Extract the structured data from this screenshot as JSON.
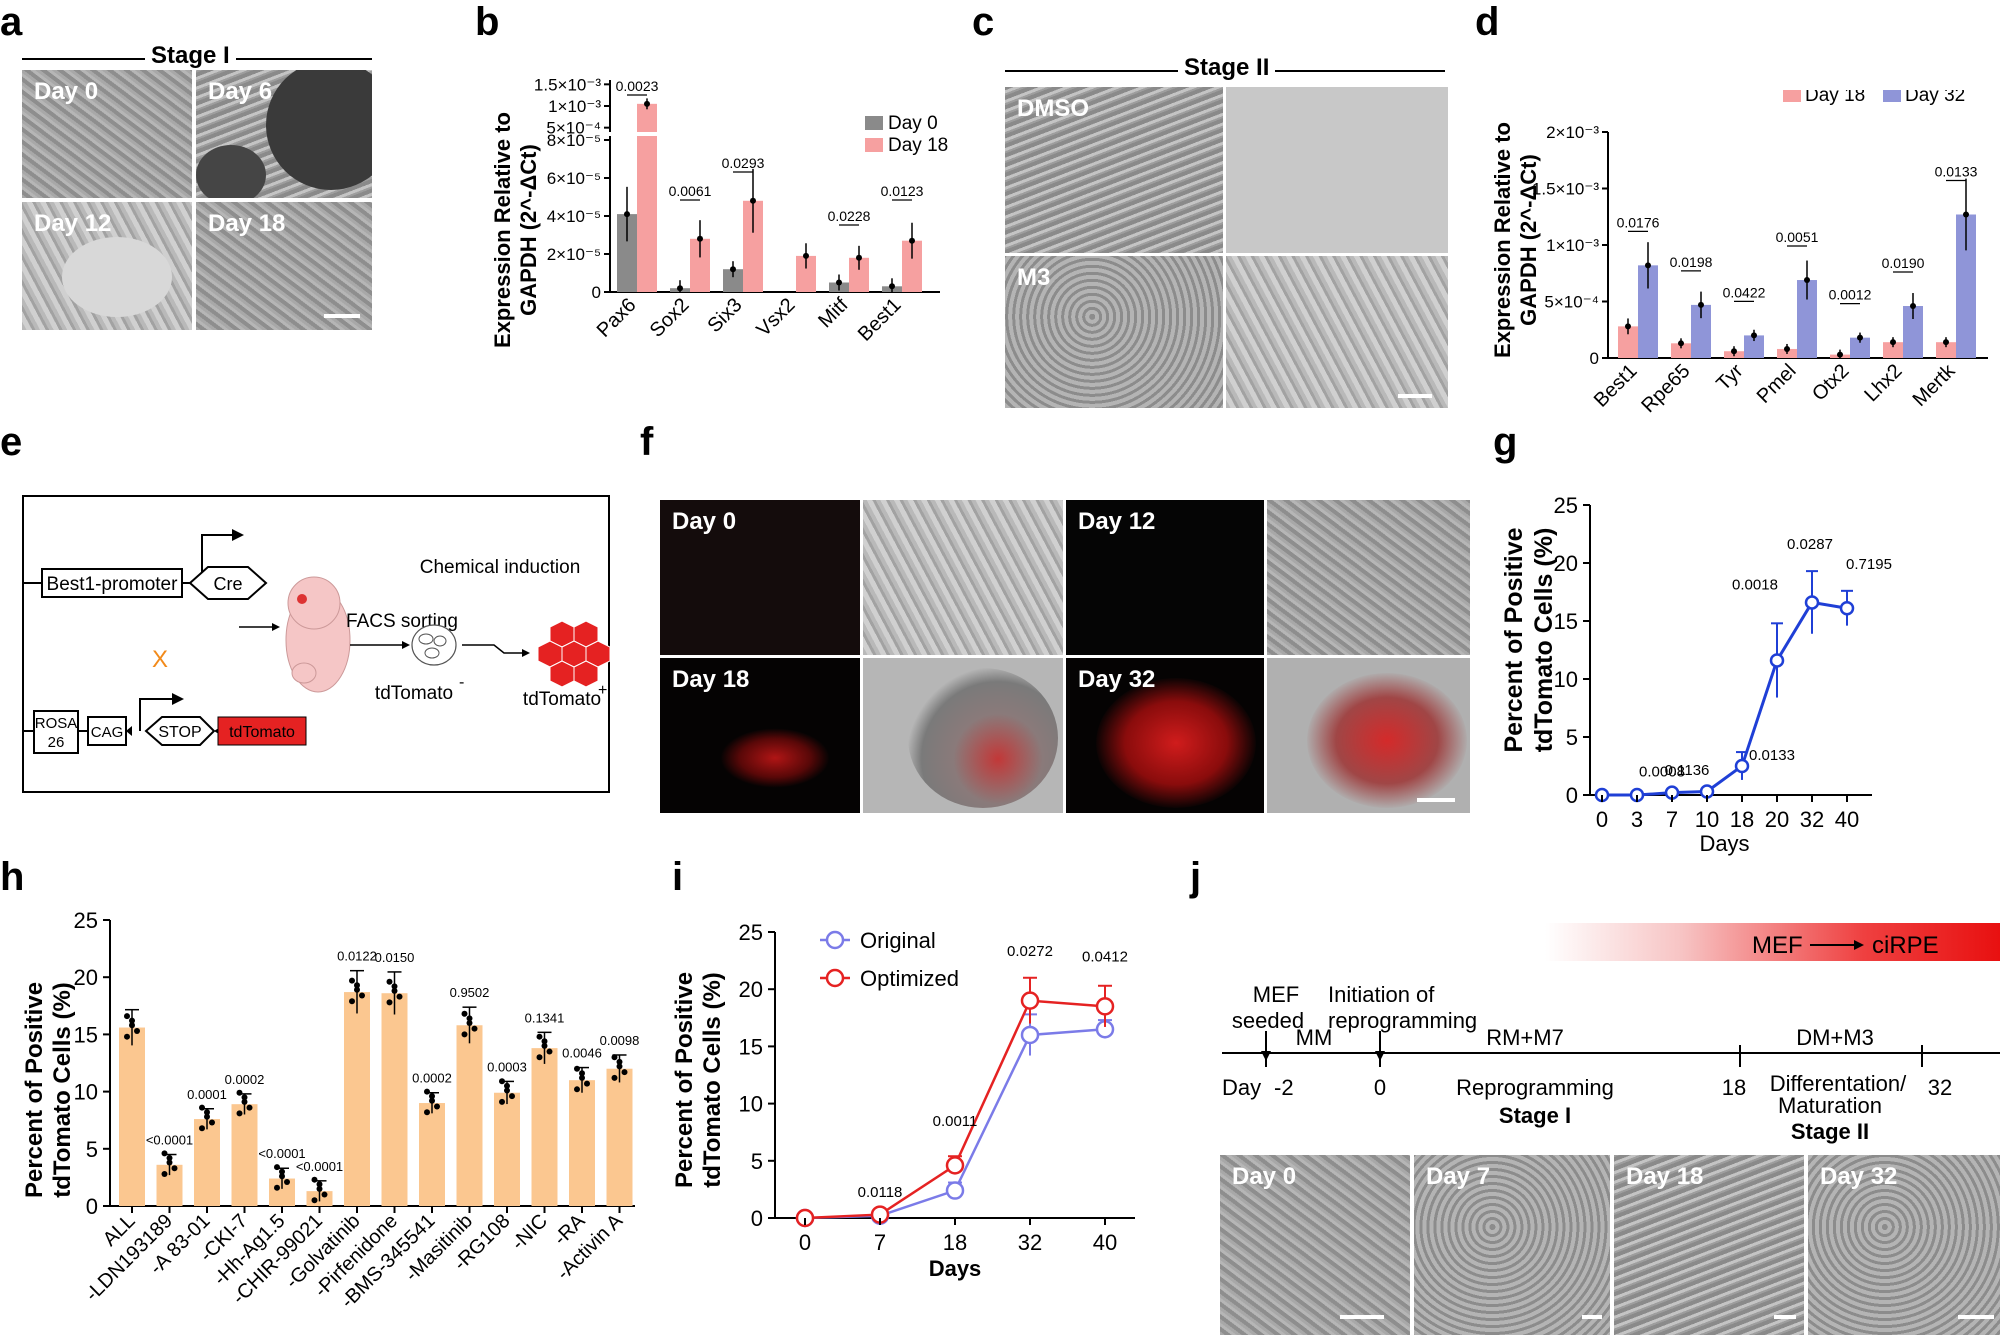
{
  "panels": {
    "a": {
      "letter": "a",
      "stage": "Stage I",
      "images": [
        "Day 0",
        "Day 6",
        "Day 12",
        "Day 18"
      ]
    },
    "c": {
      "letter": "c",
      "stage": "Stage II",
      "images": [
        "DMSO",
        "M3"
      ]
    },
    "e": {
      "letter": "e",
      "promoter": "Best1-promoter",
      "cre": "Cre",
      "cross": "X",
      "rosa": "ROSA\n26",
      "rosa1": "ROSA",
      "rosa2": "26",
      "cag": "CAG",
      "stop": "STOP",
      "tdtomato": "tdTomato",
      "facs": "FACS sorting",
      "chem": "Chemical induction",
      "neg": "tdTomato",
      "neg_sup": "-",
      "pos": "tdTomato",
      "pos_sup": "+"
    },
    "f": {
      "letter": "f",
      "images": [
        "Day 0",
        "Day 12",
        "Day 18",
        "Day 32"
      ]
    },
    "j": {
      "letter": "j",
      "gradient_label": "MEF",
      "gradient_target": "ciRPE",
      "mef_seeded_1": "MEF",
      "mef_seeded_2": "seeded",
      "init_1": "Initiation of",
      "init_2": "reprogramming",
      "mm": "MM",
      "rm": "RM+M7",
      "dm": "DM+M3",
      "day": "Day",
      "d_m2": "-2",
      "d0": "0",
      "d18": "18",
      "d32": "32",
      "reprogramming": "Reprogramming",
      "stage1": "Stage I",
      "diff_1": "Differentation/",
      "diff_2": "Maturation",
      "stage2": "Stage II",
      "images": [
        "Day 0",
        "Day 7",
        "Day 18",
        "Day 32"
      ]
    }
  },
  "colors": {
    "gray": "#8a8a8a",
    "pink": "#f6a0a0",
    "blue": "#8f95d8",
    "orange": "#fbc790",
    "line_blue": "#1f3fd6",
    "line_orig": "#7b7be8",
    "line_opt": "#e52222",
    "red": "#e52222"
  },
  "chart_data": [
    {
      "id": "b",
      "letter": "b",
      "type": "bar",
      "ylabel_1": "Expression Relative to",
      "ylabel_2": "GAPDH (2^-ΔCt)",
      "categories": [
        "Pax6",
        "Sox2",
        "Six3",
        "Vsx2",
        "Mitf",
        "Best1"
      ],
      "series": [
        {
          "name": "Day 0",
          "values": [
            4.1e-05,
            2e-06,
            1.2e-05,
            0,
            5e-06,
            3e-06
          ]
        },
        {
          "name": "Day 18",
          "values": [
            0.00105,
            2.8e-05,
            4.8e-05,
            1.9e-05,
            1.8e-05,
            2.7e-05
          ]
        }
      ],
      "pvalues": [
        "0.0023",
        "0.0061",
        "0.0293",
        "0.0228",
        "0.0123"
      ],
      "yticks_low": [
        "0",
        "2×10⁻⁵",
        "4×10⁻⁵",
        "6×10⁻⁵",
        "8×10⁻⁵"
      ],
      "yticks_high": [
        "5×10⁻⁴",
        "1×10⁻³",
        "1.5×10⁻³"
      ],
      "legend_position": "top-right"
    },
    {
      "id": "d",
      "letter": "d",
      "type": "bar",
      "ylabel_1": "Expression Relative to",
      "ylabel_2": "GAPDH (2^-ΔCt)",
      "categories": [
        "Best1",
        "Rpe65",
        "Tyr",
        "Pmel",
        "Otx2",
        "Lhx2",
        "Mertk"
      ],
      "series": [
        {
          "name": "Day 18",
          "values": [
            0.00028,
            0.00013,
            6e-05,
            8e-05,
            3e-05,
            0.00014,
            0.00014
          ]
        },
        {
          "name": "Day 32",
          "values": [
            0.00082,
            0.00047,
            0.0002,
            0.00069,
            0.00018,
            0.00046,
            0.00127
          ]
        }
      ],
      "pvalues": [
        "0.0176",
        "0.0198",
        "0.0422",
        "0.0051",
        "0.0012",
        "0.0190",
        "0.0133"
      ],
      "yticks": [
        "0",
        "5×10⁻⁴",
        "1×10⁻³",
        "1.5×10⁻³",
        "2×10⁻³"
      ],
      "ylim": [
        0,
        0.002
      ],
      "legend_position": "top-right"
    },
    {
      "id": "g",
      "letter": "g",
      "type": "line",
      "ylabel_1": "Percent of Positive",
      "ylabel_2": "tdTomato Cells (%)",
      "xlabel": "Days",
      "x": [
        "0",
        "3",
        "7",
        "10",
        "18",
        "20",
        "32",
        "40"
      ],
      "values": [
        0,
        0,
        0.2,
        0.3,
        2.5,
        11.6,
        16.6,
        16.1
      ],
      "errors": [
        0.1,
        0.1,
        0.2,
        0.2,
        1.2,
        3.2,
        2.7,
        1.5
      ],
      "pvalues": [
        "",
        "",
        "0.0008",
        "0.1136",
        "0.0133",
        "0.0018",
        "0.0287",
        "0.7195"
      ],
      "yticks": [
        "0",
        "5",
        "10",
        "15",
        "20",
        "25"
      ],
      "ylim": [
        0,
        25
      ]
    },
    {
      "id": "h",
      "letter": "h",
      "type": "bar",
      "ylabel_1": "Percent of Positive",
      "ylabel_2": "tdTomato Cells (%)",
      "categories": [
        "ALL",
        "-LDN193189",
        "-A 83-01",
        "-CKI-7",
        "-Hh-Ag1.5",
        "-CHIR-99021",
        "-Golvatinib",
        "-Pirfenidone",
        "-BMS-345541",
        "-Masitinib",
        "-RG108",
        "-NIC",
        "-RA",
        "-Activin A"
      ],
      "values": [
        15.6,
        3.6,
        7.6,
        8.9,
        2.4,
        1.3,
        18.7,
        18.6,
        9.0,
        15.8,
        9.9,
        13.8,
        11.0,
        12.0
      ],
      "pvalues": [
        "",
        "<0.0001",
        "0.0001",
        "0.0002",
        "<0.0001",
        "<0.0001",
        "0.0122",
        "0.0150",
        "0.0002",
        "0.9502",
        "0.0003",
        "0.1341",
        "0.0046",
        "0.0098"
      ],
      "yticks": [
        "0",
        "5",
        "10",
        "15",
        "20",
        "25"
      ],
      "ylim": [
        0,
        25
      ]
    },
    {
      "id": "i",
      "letter": "i",
      "type": "line",
      "ylabel_1": "Percent of Positive",
      "ylabel_2": "tdTomato Cells (%)",
      "xlabel": "Days",
      "x": [
        "0",
        "7",
        "18",
        "32",
        "40"
      ],
      "series": [
        {
          "name": "Original",
          "values": [
            0,
            0.2,
            2.4,
            16.0,
            16.5
          ],
          "errors": [
            0.2,
            0.2,
            0.7,
            1.8,
            0.8
          ]
        },
        {
          "name": "Optimized",
          "values": [
            0,
            0.3,
            4.6,
            19.0,
            18.5
          ],
          "errors": [
            0.2,
            0.2,
            0.8,
            2.0,
            1.8
          ]
        }
      ],
      "pvalues": [
        "",
        "0.0118",
        "0.0011",
        "0.0272",
        "0.0412"
      ],
      "yticks": [
        "0",
        "5",
        "10",
        "15",
        "20",
        "25"
      ],
      "ylim": [
        0,
        25
      ],
      "legend_position": "top-left"
    }
  ]
}
